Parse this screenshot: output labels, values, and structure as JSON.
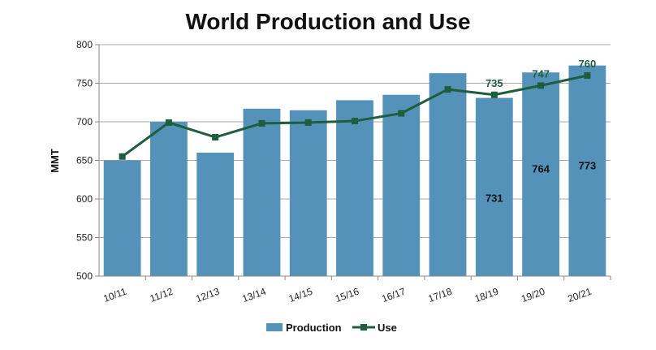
{
  "chart_data": {
    "type": "bar",
    "title": "World Production and Use",
    "xlabel": "",
    "ylabel": "MMT",
    "ylim": [
      500,
      800
    ],
    "yticks": [
      500,
      550,
      600,
      650,
      700,
      750,
      800
    ],
    "grid": true,
    "legend": "bottom",
    "categories": [
      "10/11",
      "11/12",
      "12/13",
      "13/14",
      "14/15",
      "15/16",
      "16/17",
      "17/18",
      "18/19",
      "19/20",
      "20/21"
    ],
    "series": [
      {
        "name": "Production",
        "type": "bar",
        "color": "#5592ba",
        "values": [
          650,
          700,
          660,
          717,
          715,
          728,
          735,
          763,
          731,
          764,
          773
        ],
        "data_labels": [
          null,
          null,
          null,
          null,
          null,
          null,
          null,
          null,
          "731",
          "764",
          "773"
        ]
      },
      {
        "name": "Use",
        "type": "line",
        "color": "#1e5e3e",
        "values": [
          655,
          699,
          680,
          698,
          699,
          701,
          711,
          742,
          735,
          747,
          760
        ],
        "data_labels": [
          null,
          null,
          null,
          null,
          null,
          null,
          null,
          null,
          "735",
          "747",
          "760"
        ]
      }
    ]
  }
}
